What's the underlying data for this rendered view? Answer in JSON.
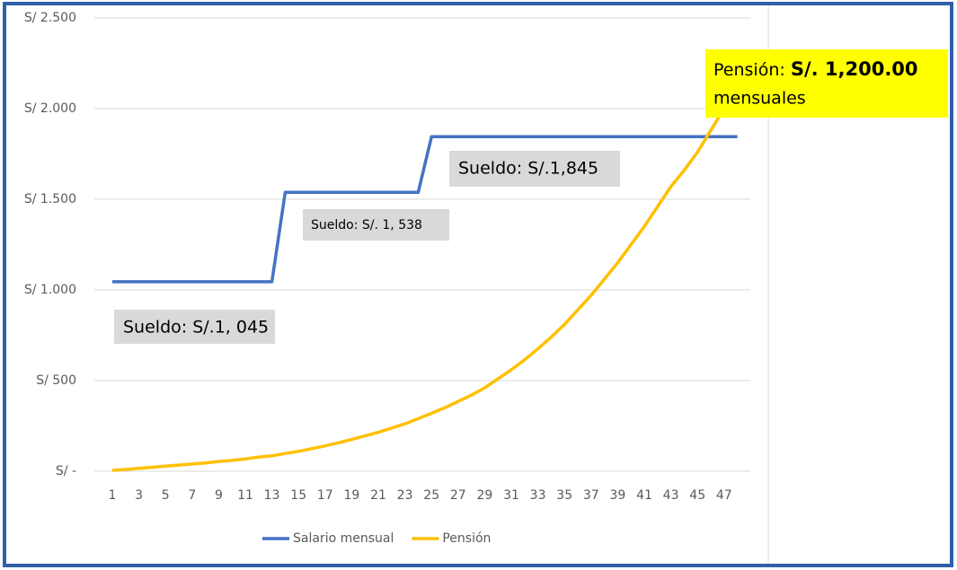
{
  "chart_data": {
    "type": "line",
    "categories": [
      1,
      null,
      3,
      null,
      5,
      null,
      7,
      null,
      9,
      null,
      11,
      null,
      13,
      null,
      15,
      null,
      17,
      null,
      19,
      null,
      21,
      null,
      23,
      null,
      25,
      null,
      27,
      null,
      29,
      null,
      31,
      null,
      33,
      null,
      35,
      null,
      37,
      null,
      39,
      null,
      41,
      null,
      43,
      null,
      45,
      null,
      47,
      null
    ],
    "series": [
      {
        "name": "Salario mensual",
        "color": "#4472c4",
        "values": [
          1045,
          1045,
          1045,
          1045,
          1045,
          1045,
          1045,
          1045,
          1045,
          1045,
          1045,
          1045,
          1045,
          1538,
          1538,
          1538,
          1538,
          1538,
          1538,
          1538,
          1538,
          1538,
          1538,
          1538,
          1845,
          1845,
          1845,
          1845,
          1845,
          1845,
          1845,
          1845,
          1845,
          1845,
          1845,
          1845,
          1845,
          1845,
          1845,
          1845,
          1845,
          1845,
          1845,
          1845,
          1845,
          1845,
          1845,
          1845
        ]
      },
      {
        "name": "Pensión",
        "color": "#ffc000",
        "values": [
          5,
          10,
          16,
          22,
          28,
          34,
          40,
          46,
          54,
          60,
          68,
          78,
          85,
          98,
          110,
          125,
          140,
          157,
          175,
          195,
          215,
          238,
          262,
          290,
          320,
          350,
          385,
          420,
          460,
          510,
          560,
          615,
          675,
          740,
          810,
          890,
          970,
          1060,
          1150,
          1250,
          1350,
          1460,
          1570,
          1660,
          1760,
          1880,
          2000,
          2120
        ]
      }
    ],
    "ylim": [
      0,
      2500
    ],
    "yticks": [
      {
        "value": 0,
        "label": "S/ -"
      },
      {
        "value": 500,
        "label": "S/ 500"
      },
      {
        "value": 1000,
        "label": "S/ 1.000"
      },
      {
        "value": 1500,
        "label": "S/ 1.500"
      },
      {
        "value": 2000,
        "label": "S/ 2.000"
      },
      {
        "value": 2500,
        "label": "S/ 2.500"
      }
    ],
    "grid": true,
    "legend": "bottom",
    "annotations": [
      "Sueldo: S/.1, 045",
      "Sueldo: S/. 1, 538",
      "Sueldo: S/.1,845"
    ],
    "pension_note": {
      "prefix": "Pensión:",
      "value": "S/. 1,200.00",
      "suffix": "mensuales"
    }
  }
}
